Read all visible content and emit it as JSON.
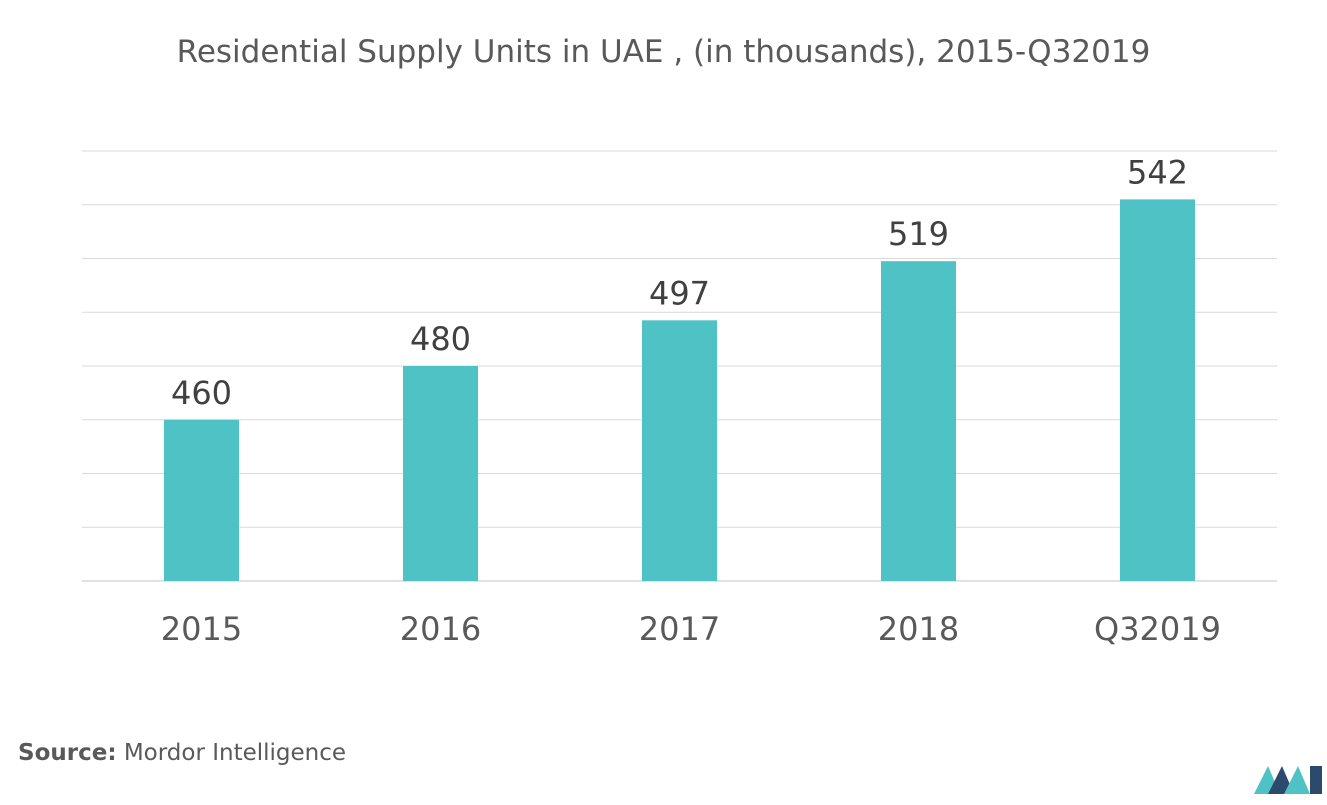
{
  "title": "Residential Supply Units in UAE , (in thousands), 2015-Q32019",
  "source": {
    "label": "Source:",
    "text": "Mordor Intelligence"
  },
  "colors": {
    "bar": "#4fc2c6",
    "grid": "#d9d9d9",
    "text": "#595959",
    "logo_dark": "#2c4a6e",
    "logo_light": "#4fc2c6"
  },
  "logo": {
    "icon": "mordor-intelligence-logo"
  },
  "chart_data": {
    "type": "bar",
    "title": "Residential Supply Units in UAE , (in thousands), 2015-Q32019",
    "categories": [
      "2015",
      "2016",
      "2017",
      "2018",
      "Q32019"
    ],
    "values": [
      460,
      480,
      497,
      519,
      542
    ],
    "xlabel": "",
    "ylabel": "",
    "ylim": [
      400,
      560
    ],
    "grid": true,
    "data_labels": true,
    "legend": "none"
  }
}
